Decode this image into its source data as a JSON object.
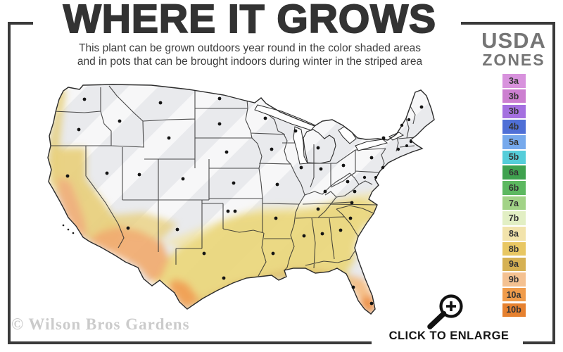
{
  "header": {
    "title": "WHERE IT GROWS",
    "subtitle_line1": "This plant can be grown outdoors year round in the color shaded areas",
    "subtitle_line2": "and in pots that can be brought indoors during winter in the striped area"
  },
  "legend": {
    "title_line1": "USDA",
    "title_line2": "ZONES",
    "zones": [
      {
        "label": "3a",
        "color": "#d892dd"
      },
      {
        "label": "3b",
        "color": "#cc7fd0"
      },
      {
        "label": "3b",
        "color": "#a470e0"
      },
      {
        "label": "4b",
        "color": "#4f6fd6"
      },
      {
        "label": "5a",
        "color": "#76a9ec"
      },
      {
        "label": "5b",
        "color": "#55cdd9"
      },
      {
        "label": "6a",
        "color": "#3fa24f"
      },
      {
        "label": "6b",
        "color": "#5cb860"
      },
      {
        "label": "7a",
        "color": "#a2d387"
      },
      {
        "label": "7b",
        "color": "#e2efc4"
      },
      {
        "label": "8a",
        "color": "#f2e3ab"
      },
      {
        "label": "8b",
        "color": "#e8c763"
      },
      {
        "label": "9a",
        "color": "#d6b153"
      },
      {
        "label": "9b",
        "color": "#f4c191"
      },
      {
        "label": "10a",
        "color": "#f09c4b"
      },
      {
        "label": "10b",
        "color": "#e6812f"
      }
    ]
  },
  "map": {
    "region": "contiguous United States",
    "base_color": "#e9eaed",
    "stripe_color": "#ffffff",
    "state_border_color": "#2b2b2b",
    "state_dot_color": "#141414",
    "shaded_meaning": "color shaded areas = grows outdoors year round",
    "striped_meaning": "striped area = grow in pots brought indoors during winter"
  },
  "footer": {
    "watermark": "© Wilson Bros Gardens",
    "enlarge_label": "CLICK TO ENLARGE",
    "enlarge_icon": "magnifier-plus-icon"
  }
}
